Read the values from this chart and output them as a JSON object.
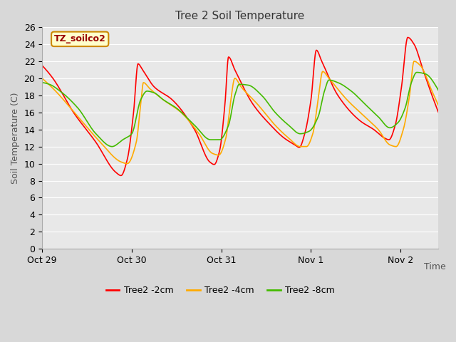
{
  "title": "Tree 2 Soil Temperature",
  "xlabel": "Time",
  "ylabel": "Soil Temperature (C)",
  "annotation": "TZ_soilco2",
  "ylim": [
    0,
    26
  ],
  "yticks": [
    0,
    2,
    4,
    6,
    8,
    10,
    12,
    14,
    16,
    18,
    20,
    22,
    24,
    26
  ],
  "xtick_labels": [
    "Oct 29",
    "Oct 30",
    "Oct 31",
    "Nov 1",
    "Nov 2"
  ],
  "xtick_positions": [
    0,
    1,
    2,
    3,
    4
  ],
  "colors": {
    "2cm": "#ff0000",
    "4cm": "#ffaa00",
    "8cm": "#44bb00"
  },
  "fig_background": "#d8d8d8",
  "plot_background": "#e8e8e8",
  "grid_color": "#ffffff",
  "legend_labels": [
    "Tree2 -2cm",
    "Tree2 -4cm",
    "Tree2 -8cm"
  ]
}
